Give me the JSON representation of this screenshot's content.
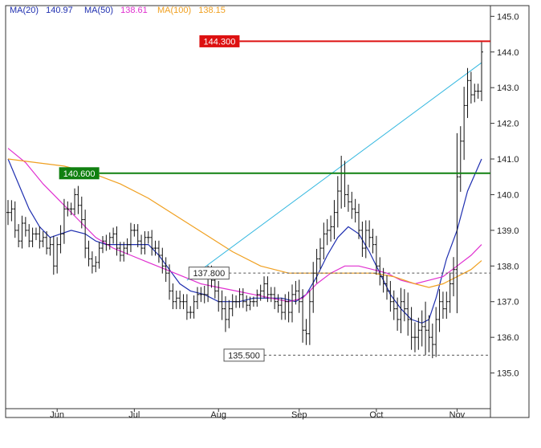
{
  "legend": {
    "ma20": {
      "label": "MA(20)",
      "value": "140.97",
      "color": "#1f2fb0"
    },
    "ma50": {
      "label": "MA(50)",
      "value": "138.61",
      "color": "#e030d0"
    },
    "ma100": {
      "label": "MA(100)",
      "value": "138.15",
      "color": "#f0a020"
    }
  },
  "chart_data": {
    "type": "line",
    "subtype": "ohlc-bars",
    "ylim": [
      134.0,
      145.3
    ],
    "y_ticks": [
      {
        "value": 135.0,
        "label": "135.0"
      },
      {
        "value": 136.0,
        "label": "136.0"
      },
      {
        "value": 137.0,
        "label": "137.0"
      },
      {
        "value": 138.0,
        "label": "138.0"
      },
      {
        "value": 139.0,
        "label": "139.0"
      },
      {
        "value": 140.0,
        "label": "140.0"
      },
      {
        "value": 141.0,
        "label": "141.0"
      },
      {
        "value": 142.0,
        "label": "142.0"
      },
      {
        "value": 143.0,
        "label": "143.0"
      },
      {
        "value": 144.0,
        "label": "144.0"
      },
      {
        "value": 145.0,
        "label": "145.0"
      }
    ],
    "x_ticks": [
      {
        "bar": 14,
        "label": "Jun"
      },
      {
        "bar": 36,
        "label": "Jul"
      },
      {
        "bar": 60,
        "label": "Aug"
      },
      {
        "bar": 83,
        "label": "Sep"
      },
      {
        "bar": 105,
        "label": "Oct"
      },
      {
        "bar": 128,
        "label": "Nov"
      }
    ],
    "levels": [
      {
        "value": 144.3,
        "label": "144.300",
        "color": "#dd1111",
        "style": "solid",
        "start_bar": 66
      },
      {
        "value": 140.6,
        "label": "140.600",
        "color": "#108010",
        "style": "solid",
        "start_bar": 26
      },
      {
        "value": 137.8,
        "label": "137.800",
        "color": "#555555",
        "style": "dashed",
        "start_bar": 63
      },
      {
        "value": 135.5,
        "label": "135.500",
        "color": "#555555",
        "style": "dashed",
        "start_bar": 73
      }
    ],
    "trendline": {
      "color": "#35b8e0",
      "from": {
        "bar": 51,
        "y": 137.6
      },
      "to": {
        "bar": 135,
        "y": 143.7
      }
    },
    "bar_count": 136,
    "closes": [
      139.5,
      139.6,
      139.0,
      138.7,
      139.2,
      139.0,
      138.7,
      138.9,
      138.9,
      138.7,
      138.8,
      138.5,
      138.6,
      138.0,
      138.6,
      138.9,
      139.6,
      139.6,
      139.6,
      140.0,
      139.7,
      139.3,
      138.5,
      138.2,
      138.0,
      138.1,
      138.5,
      138.7,
      138.6,
      138.8,
      138.9,
      138.5,
      138.3,
      138.5,
      138.6,
      139.0,
      139.0,
      138.7,
      138.5,
      138.8,
      138.8,
      138.5,
      138.5,
      138.3,
      138.0,
      137.8,
      137.3,
      137.0,
      137.1,
      137.0,
      137.0,
      136.7,
      136.7,
      137.0,
      137.2,
      137.2,
      137.2,
      137.8,
      137.6,
      137.3,
      137.0,
      136.8,
      136.5,
      136.8,
      137.0,
      137.0,
      137.2,
      137.0,
      136.9,
      137.0,
      137.0,
      137.2,
      137.3,
      137.5,
      137.2,
      137.2,
      137.0,
      136.9,
      136.7,
      137.0,
      136.7,
      137.2,
      137.3,
      137.0,
      136.2,
      136.1,
      137.0,
      137.8,
      138.2,
      138.5,
      138.9,
      139.0,
      139.1,
      139.5,
      140.1,
      140.6,
      140.0,
      139.8,
      139.6,
      139.5,
      139.0,
      138.5,
      139.0,
      138.8,
      138.6,
      138.0,
      137.7,
      137.5,
      137.3,
      137.0,
      136.8,
      136.5,
      137.0,
      136.8,
      136.5,
      136.0,
      136.0,
      136.2,
      136.3,
      136.2,
      136.0,
      135.8,
      136.5,
      137.0,
      136.8,
      137.0,
      137.5,
      137.9,
      140.5,
      141.5,
      142.5,
      143.2,
      142.8,
      142.9,
      142.9,
      144.0
    ],
    "ranges": [
      1.0,
      0.7,
      0.6,
      0.5,
      0.6,
      0.5,
      0.5,
      0.5,
      0.5,
      0.6,
      0.5,
      0.5,
      0.6,
      0.7,
      0.6,
      0.7,
      0.8,
      0.6,
      0.5,
      0.5,
      0.7,
      0.7,
      0.8,
      0.6,
      0.6,
      0.5,
      0.5,
      0.4,
      0.5,
      0.4,
      0.5,
      0.6,
      0.5,
      0.5,
      0.5,
      0.6,
      0.5,
      0.5,
      0.5,
      0.5,
      0.5,
      0.6,
      0.6,
      0.6,
      0.6,
      0.7,
      0.7,
      0.6,
      0.6,
      0.6,
      0.6,
      0.6,
      0.5,
      0.5,
      0.6,
      0.6,
      0.7,
      0.6,
      0.6,
      0.6,
      0.8,
      0.9,
      1.0,
      0.7,
      0.6,
      0.5,
      0.5,
      0.5,
      0.5,
      0.4,
      0.4,
      0.4,
      0.5,
      0.6,
      0.6,
      0.6,
      0.6,
      0.6,
      0.6,
      0.6,
      0.8,
      0.8,
      0.8,
      0.9,
      1.0,
      0.9,
      0.9,
      0.9,
      0.8,
      0.8,
      0.9,
      0.9,
      0.9,
      1.0,
      1.2,
      1.4,
      1.0,
      0.8,
      0.8,
      0.8,
      0.7,
      0.7,
      0.8,
      0.8,
      0.7,
      0.7,
      0.7,
      0.7,
      0.7,
      0.8,
      0.9,
      0.9,
      1.1,
      1.0,
      1.3,
      1.0,
      1.2,
      1.0,
      1.3,
      2.0,
      1.2,
      1.1,
      1.0,
      1.0,
      0.8,
      0.8,
      0.9,
      1.0,
      3.5,
      1.2,
      1.5,
      1.0,
      0.7,
      0.6,
      0.6,
      0.8
    ],
    "series": [
      {
        "key": "ma20",
        "color": "#1f2fb0",
        "points": [
          [
            0,
            141.0
          ],
          [
            3,
            140.3
          ],
          [
            6,
            139.6
          ],
          [
            9,
            139.1
          ],
          [
            12,
            138.8
          ],
          [
            15,
            138.9
          ],
          [
            18,
            139.0
          ],
          [
            22,
            138.9
          ],
          [
            25,
            138.7
          ],
          [
            28,
            138.6
          ],
          [
            31,
            138.6
          ],
          [
            34,
            138.6
          ],
          [
            37,
            138.6
          ],
          [
            40,
            138.6
          ],
          [
            43,
            138.3
          ],
          [
            46,
            137.9
          ],
          [
            49,
            137.5
          ],
          [
            52,
            137.3
          ],
          [
            56,
            137.2
          ],
          [
            60,
            137.0
          ],
          [
            63,
            137.0
          ],
          [
            66,
            137.0
          ],
          [
            70,
            137.1
          ],
          [
            74,
            137.1
          ],
          [
            78,
            137.1
          ],
          [
            82,
            137.0
          ],
          [
            85,
            137.2
          ],
          [
            88,
            137.7
          ],
          [
            91,
            138.3
          ],
          [
            94,
            138.8
          ],
          [
            97,
            139.1
          ],
          [
            100,
            138.9
          ],
          [
            103,
            138.4
          ],
          [
            106,
            137.8
          ],
          [
            109,
            137.2
          ],
          [
            112,
            136.8
          ],
          [
            115,
            136.5
          ],
          [
            118,
            136.4
          ],
          [
            120,
            136.5
          ],
          [
            122,
            137.1
          ],
          [
            125,
            138.2
          ],
          [
            128,
            139.0
          ],
          [
            131,
            140.1
          ],
          [
            135,
            141.0
          ]
        ]
      },
      {
        "key": "ma50",
        "color": "#e030d0",
        "points": [
          [
            0,
            141.3
          ],
          [
            5,
            140.9
          ],
          [
            10,
            140.3
          ],
          [
            15,
            139.8
          ],
          [
            20,
            139.3
          ],
          [
            25,
            138.8
          ],
          [
            30,
            138.5
          ],
          [
            35,
            138.3
          ],
          [
            40,
            138.1
          ],
          [
            45,
            137.9
          ],
          [
            50,
            137.7
          ],
          [
            55,
            137.5
          ],
          [
            60,
            137.4
          ],
          [
            65,
            137.3
          ],
          [
            70,
            137.2
          ],
          [
            75,
            137.1
          ],
          [
            80,
            137.0
          ],
          [
            84,
            137.1
          ],
          [
            88,
            137.5
          ],
          [
            92,
            137.8
          ],
          [
            96,
            138.0
          ],
          [
            100,
            138.0
          ],
          [
            104,
            137.9
          ],
          [
            108,
            137.8
          ],
          [
            112,
            137.6
          ],
          [
            116,
            137.5
          ],
          [
            120,
            137.6
          ],
          [
            124,
            137.7
          ],
          [
            128,
            138.0
          ],
          [
            132,
            138.3
          ],
          [
            135,
            138.6
          ]
        ]
      },
      {
        "key": "ma100",
        "color": "#f0a020",
        "points": [
          [
            0,
            141.0
          ],
          [
            8,
            140.9
          ],
          [
            16,
            140.8
          ],
          [
            24,
            140.6
          ],
          [
            32,
            140.3
          ],
          [
            40,
            139.9
          ],
          [
            48,
            139.4
          ],
          [
            56,
            138.9
          ],
          [
            64,
            138.4
          ],
          [
            72,
            138.0
          ],
          [
            80,
            137.8
          ],
          [
            88,
            137.8
          ],
          [
            96,
            137.8
          ],
          [
            104,
            137.8
          ],
          [
            110,
            137.7
          ],
          [
            116,
            137.5
          ],
          [
            120,
            137.4
          ],
          [
            124,
            137.5
          ],
          [
            128,
            137.7
          ],
          [
            132,
            137.9
          ],
          [
            135,
            138.15
          ]
        ]
      }
    ]
  }
}
